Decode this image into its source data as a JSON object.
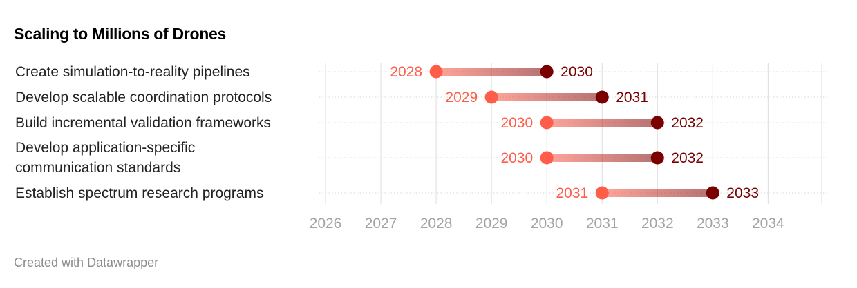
{
  "title": "Scaling to Millions of Drones",
  "footer": "Created with Datawrapper",
  "colors": {
    "start": "#ff5c4a",
    "end": "#7a0000",
    "grid": "#dddddd",
    "tick_text": "#a3a3a3"
  },
  "chart_data": {
    "type": "range",
    "title": "Scaling to Millions of Drones",
    "xlim": [
      2026,
      2034.97
    ],
    "x_ticks": [
      2026,
      2027,
      2028,
      2029,
      2030,
      2031,
      2032,
      2033,
      2034
    ],
    "rows": [
      {
        "label": [
          "Create simulation-to-reality pipelines"
        ],
        "start": 2028,
        "end": 2030
      },
      {
        "label": [
          "Develop scalable coordination protocols"
        ],
        "start": 2029,
        "end": 2031
      },
      {
        "label": [
          "Build incremental validation frameworks"
        ],
        "start": 2030,
        "end": 2032
      },
      {
        "label": [
          "Develop application-specific",
          "communication standards"
        ],
        "start": 2030,
        "end": 2032
      },
      {
        "label": [
          "Establish spectrum research programs"
        ],
        "start": 2031,
        "end": 2033
      }
    ]
  }
}
